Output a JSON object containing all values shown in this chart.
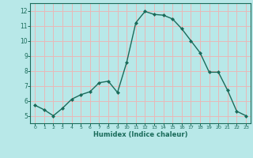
{
  "x": [
    0,
    1,
    2,
    3,
    4,
    5,
    6,
    7,
    8,
    9,
    10,
    11,
    12,
    13,
    14,
    15,
    16,
    17,
    18,
    19,
    20,
    21,
    22,
    23
  ],
  "y": [
    5.7,
    5.4,
    5.0,
    5.5,
    6.1,
    6.4,
    6.6,
    7.2,
    7.3,
    6.55,
    8.55,
    11.2,
    11.95,
    11.75,
    11.7,
    11.45,
    10.8,
    10.0,
    9.2,
    7.9,
    7.9,
    6.7,
    5.3,
    5.0
  ],
  "line_color": "#1a6b5a",
  "marker": "D",
  "marker_size": 2,
  "bg_color": "#b8e8e8",
  "grid_color": "#e8b8b8",
  "tick_color": "#1a6b5a",
  "label_color": "#1a6b5a",
  "xlabel": "Humidex (Indice chaleur)",
  "ylim": [
    4.5,
    12.5
  ],
  "xlim": [
    -0.5,
    23.5
  ],
  "yticks": [
    5,
    6,
    7,
    8,
    9,
    10,
    11,
    12
  ],
  "xticks": [
    0,
    1,
    2,
    3,
    4,
    5,
    6,
    7,
    8,
    9,
    10,
    11,
    12,
    13,
    14,
    15,
    16,
    17,
    18,
    19,
    20,
    21,
    22,
    23
  ]
}
